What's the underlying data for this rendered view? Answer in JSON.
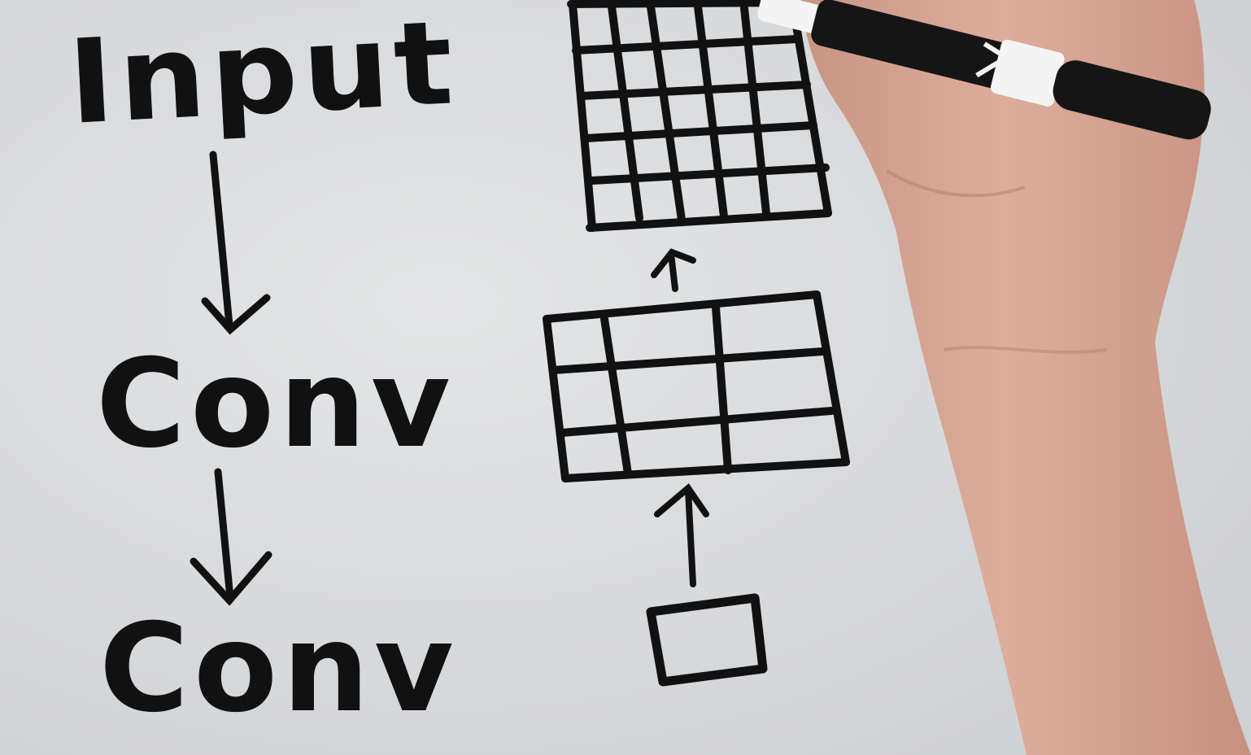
{
  "whiteboard": {
    "labels": {
      "input": "Input",
      "conv1": "Conv",
      "conv2": "Conv"
    }
  },
  "grids": {
    "large": {
      "rows": 5,
      "cols": 5
    },
    "medium": {
      "rows": 3,
      "cols": 3
    },
    "small": {
      "rows": 1,
      "cols": 1
    }
  },
  "colors": {
    "board": "#d9dadc",
    "ink": "#111111",
    "skin": "#d9a896",
    "skin_shadow": "#c08c7a",
    "marker_body": "#151515",
    "marker_cap": "#f4f4f4"
  }
}
